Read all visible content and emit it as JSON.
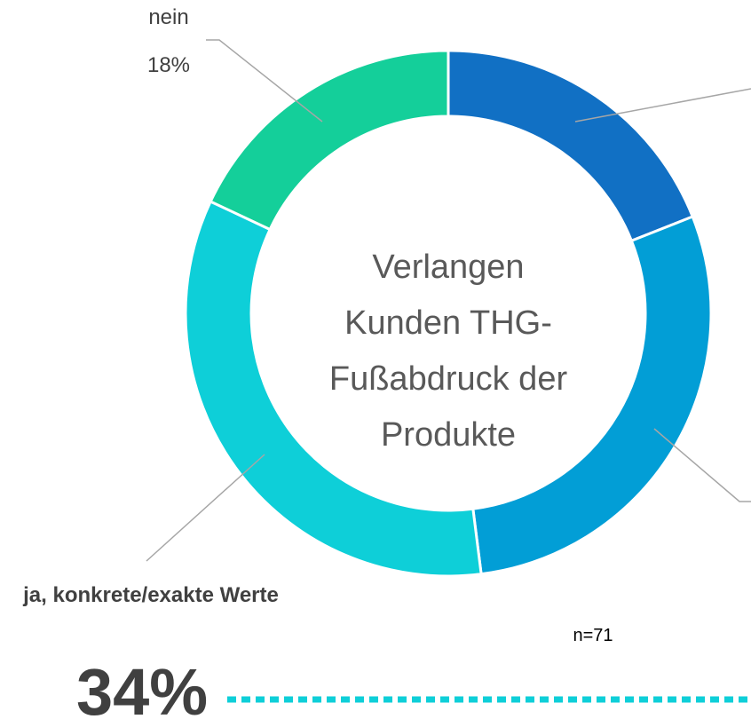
{
  "chart_data": {
    "type": "donut",
    "title": "Verlangen Kunden THG-Fußabdruck der Produkte",
    "categories": [
      null,
      null,
      "ja, konkrete/exakte Werte",
      "nein"
    ],
    "values": [
      19,
      29,
      34,
      18
    ],
    "value_labels": [
      null,
      null,
      "34%",
      "18%"
    ],
    "colors": [
      "#1170c4",
      "#029ed6",
      "#0ecfd8",
      "#14cf9a"
    ],
    "note": "n=71"
  }
}
